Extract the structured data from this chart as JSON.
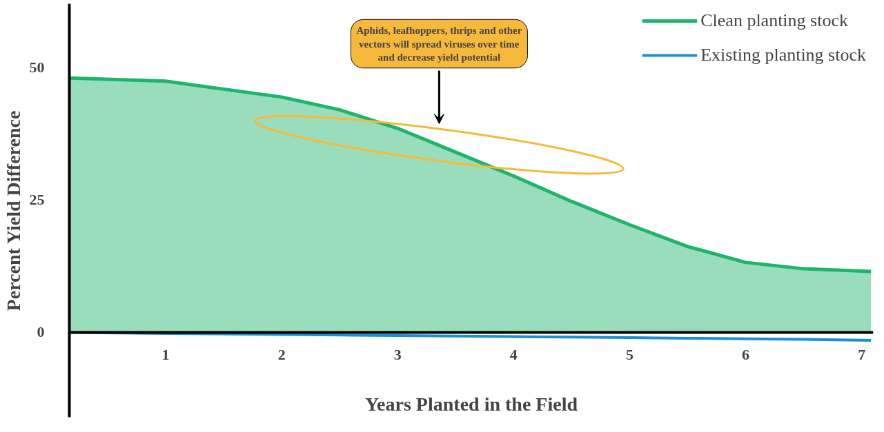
{
  "chart_data": {
    "type": "line",
    "xlabel": "Years Planted in the Field",
    "ylabel": "Percent Yield Difference",
    "x": [
      0.17,
      1,
      2,
      2.5,
      3,
      3.5,
      4,
      4.5,
      5,
      5.5,
      6,
      6.5,
      7.08
    ],
    "series": [
      {
        "name": "Clean planting stock",
        "type": "area",
        "color": "#1fb46b",
        "values": [
          48,
          47.4,
          44.4,
          42,
          38.5,
          34,
          29.5,
          24.7,
          20.3,
          16.2,
          13.2,
          12,
          11.5
        ]
      },
      {
        "name": "Existing planting stock",
        "color": "#1a8fd6",
        "values": [
          0,
          -0.2,
          -0.4,
          -0.5,
          -0.6,
          -0.7,
          -0.8,
          -0.9,
          -1,
          -1.1,
          -1.2,
          -1.3,
          -1.5
        ]
      }
    ],
    "xlim": [
      0.17,
      7.1
    ],
    "ylim": [
      -16,
      62
    ],
    "xticks": [
      1,
      2,
      3,
      4,
      5,
      6,
      7
    ],
    "yticks": [
      0,
      25,
      50
    ],
    "grid": false,
    "legend": "top right",
    "annotations": [
      "Aphids, leafhoppers, thrips and other vectors will spread viruses over time and decrease yield potential"
    ]
  }
}
